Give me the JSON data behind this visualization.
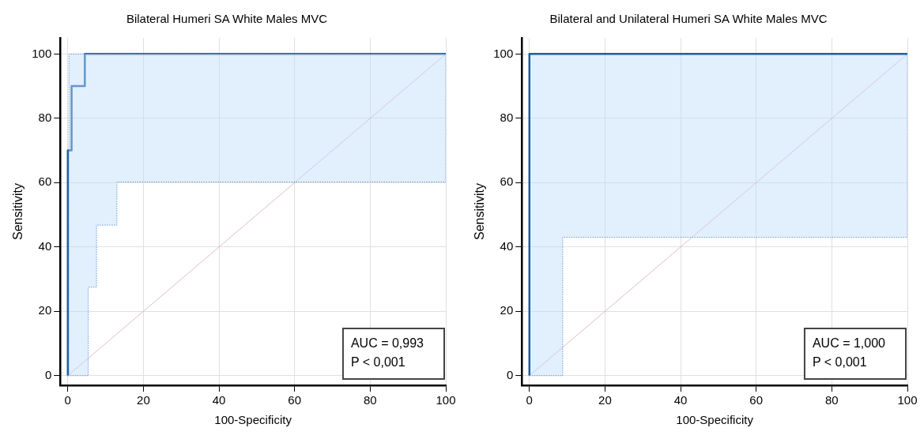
{
  "chart_data": [
    {
      "type": "step",
      "title": "Bilateral Humeri SA White Males MVC",
      "xlabel": "100-Specificity",
      "ylabel": "Sensitivity",
      "xlim": [
        -2,
        100
      ],
      "ylim": [
        -3,
        105
      ],
      "xticks": [
        0,
        20,
        40,
        60,
        80,
        100
      ],
      "yticks": [
        0,
        20,
        40,
        60,
        80,
        100
      ],
      "grid": true,
      "legend": false,
      "line_style": "solid",
      "marker": "none",
      "series": [
        {
          "color": "#6a9bd0",
          "line_style": "dotted",
          "x": [
            0,
            5.4,
            7.6,
            13,
            100,
            100
          ],
          "values": [
            0,
            27.5,
            46.8,
            60.2,
            60.2,
            100
          ]
        },
        {
          "color": "#6a9bd0",
          "line_style": "dotted",
          "x": [
            0,
            0.3,
            100
          ],
          "values": [
            0,
            100,
            100
          ]
        },
        {
          "type": "line",
          "color": "#d8a8c0",
          "x": [
            0,
            100
          ],
          "values": [
            0,
            100
          ]
        },
        {
          "color": "#1a5ea8",
          "x": [
            0,
            0,
            1,
            4.5,
            100
          ],
          "values": [
            0,
            70,
            90,
            100,
            100
          ]
        }
      ],
      "annotations": [
        "AUC = 0,993",
        "P < 0,001"
      ]
    },
    {
      "type": "step",
      "title": "Bilateral and Unilateral Humeri SA White Males MVC",
      "xlabel": "100-Specificity",
      "ylabel": "Sensitivity",
      "xlim": [
        -2,
        100
      ],
      "ylim": [
        -3,
        105
      ],
      "xticks": [
        0,
        20,
        40,
        60,
        80,
        100
      ],
      "yticks": [
        0,
        20,
        40,
        60,
        80,
        100
      ],
      "grid": true,
      "legend": false,
      "line_style": "solid",
      "marker": "none",
      "series": [
        {
          "color": "#6a9bd0",
          "line_style": "dotted",
          "x": [
            0,
            8.8,
            100,
            100
          ],
          "values": [
            0,
            43,
            43,
            100
          ]
        },
        {
          "color": "#1a5ea8",
          "x": [
            0,
            0,
            100
          ],
          "values": [
            0,
            100,
            100
          ]
        },
        {
          "type": "line",
          "color": "#d8a8c0",
          "x": [
            0,
            100
          ],
          "values": [
            0,
            100
          ]
        }
      ],
      "annotations": [
        "AUC = 1,000",
        "P < 0,001"
      ]
    }
  ]
}
